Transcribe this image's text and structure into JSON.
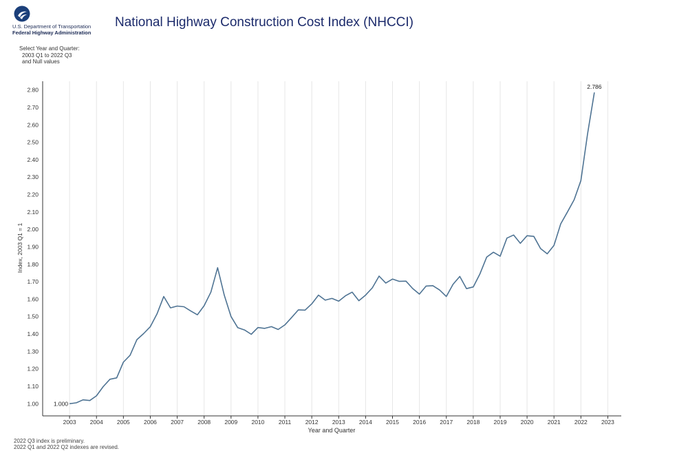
{
  "header": {
    "logo_line1": "U.S. Department of Transportation",
    "logo_line2": "Federal Highway Administration",
    "title": "National Highway Construction Cost Index (NHCCI)"
  },
  "filter": {
    "line1": "Select Year and Quarter:",
    "line2": "2003 Q1 to 2022 Q3",
    "line3": "and Null values"
  },
  "footnotes": {
    "line1": "2022 Q3 index is preliminary.",
    "line2": "2022 Q1 and 2022 Q2 indexes are revised."
  },
  "colors": {
    "line": "#4e7393",
    "title": "#1b2a6b",
    "grid": "#e6e6e6"
  },
  "chart_data": {
    "type": "line",
    "xlabel": "Year and Quarter",
    "ylabel": "Index, 2003 Q1 = 1",
    "ylim": [
      0.93,
      2.85
    ],
    "xlim": [
      2002.0,
      2023.5
    ],
    "yticks": [
      "1.00",
      "1.10",
      "1.20",
      "1.30",
      "1.40",
      "1.50",
      "1.60",
      "1.70",
      "1.80",
      "1.90",
      "2.00",
      "2.10",
      "2.20",
      "2.30",
      "2.40",
      "2.50",
      "2.60",
      "2.70",
      "2.80"
    ],
    "xticks": [
      "2003",
      "2004",
      "2005",
      "2006",
      "2007",
      "2008",
      "2009",
      "2010",
      "2011",
      "2012",
      "2013",
      "2014",
      "2015",
      "2016",
      "2017",
      "2018",
      "2019",
      "2020",
      "2021",
      "2022",
      "2023"
    ],
    "grid": "vertical",
    "series": [
      {
        "x": [
          "2003 Q1",
          "2003 Q2",
          "2003 Q3",
          "2003 Q4",
          "2004 Q1",
          "2004 Q2",
          "2004 Q3",
          "2004 Q4",
          "2005 Q1",
          "2005 Q2",
          "2005 Q3",
          "2005 Q4",
          "2006 Q1",
          "2006 Q2",
          "2006 Q3",
          "2006 Q4",
          "2007 Q1",
          "2007 Q2",
          "2007 Q3",
          "2007 Q4",
          "2008 Q1",
          "2008 Q2",
          "2008 Q3",
          "2008 Q4",
          "2009 Q1",
          "2009 Q2",
          "2009 Q3",
          "2009 Q4",
          "2010 Q1",
          "2010 Q2",
          "2010 Q3",
          "2010 Q4",
          "2011 Q1",
          "2011 Q2",
          "2011 Q3",
          "2011 Q4",
          "2012 Q1",
          "2012 Q2",
          "2012 Q3",
          "2012 Q4",
          "2013 Q1",
          "2013 Q2",
          "2013 Q3",
          "2013 Q4",
          "2014 Q1",
          "2014 Q2",
          "2014 Q3",
          "2014 Q4",
          "2015 Q1",
          "2015 Q2",
          "2015 Q3",
          "2015 Q4",
          "2016 Q1",
          "2016 Q2",
          "2016 Q3",
          "2016 Q4",
          "2017 Q1",
          "2017 Q2",
          "2017 Q3",
          "2017 Q4",
          "2018 Q1",
          "2018 Q2",
          "2018 Q3",
          "2018 Q4",
          "2019 Q1",
          "2019 Q2",
          "2019 Q3",
          "2019 Q4",
          "2020 Q1",
          "2020 Q2",
          "2020 Q3",
          "2020 Q4",
          "2021 Q1",
          "2021 Q2",
          "2021 Q3",
          "2021 Q4",
          "2022 Q1",
          "2022 Q2",
          "2022 Q3"
        ],
        "values": [
          1.0,
          1.005,
          1.022,
          1.018,
          1.045,
          1.098,
          1.14,
          1.148,
          1.238,
          1.278,
          1.367,
          1.402,
          1.442,
          1.515,
          1.615,
          1.55,
          1.56,
          1.556,
          1.532,
          1.51,
          1.562,
          1.64,
          1.78,
          1.622,
          1.5,
          1.436,
          1.423,
          1.398,
          1.437,
          1.432,
          1.442,
          1.426,
          1.452,
          1.494,
          1.538,
          1.537,
          1.573,
          1.623,
          1.594,
          1.604,
          1.588,
          1.619,
          1.64,
          1.591,
          1.623,
          1.665,
          1.732,
          1.692,
          1.715,
          1.702,
          1.703,
          1.661,
          1.629,
          1.675,
          1.677,
          1.652,
          1.615,
          1.685,
          1.73,
          1.66,
          1.67,
          1.745,
          1.841,
          1.869,
          1.846,
          1.95,
          1.968,
          1.92,
          1.964,
          1.96,
          1.89,
          1.86,
          1.908,
          2.032,
          2.1,
          2.17,
          2.28,
          2.55,
          2.786
        ]
      }
    ],
    "data_labels": [
      {
        "x": "2003 Q1",
        "text": "1.000"
      },
      {
        "x": "2022 Q3",
        "text": "2.786"
      }
    ]
  }
}
